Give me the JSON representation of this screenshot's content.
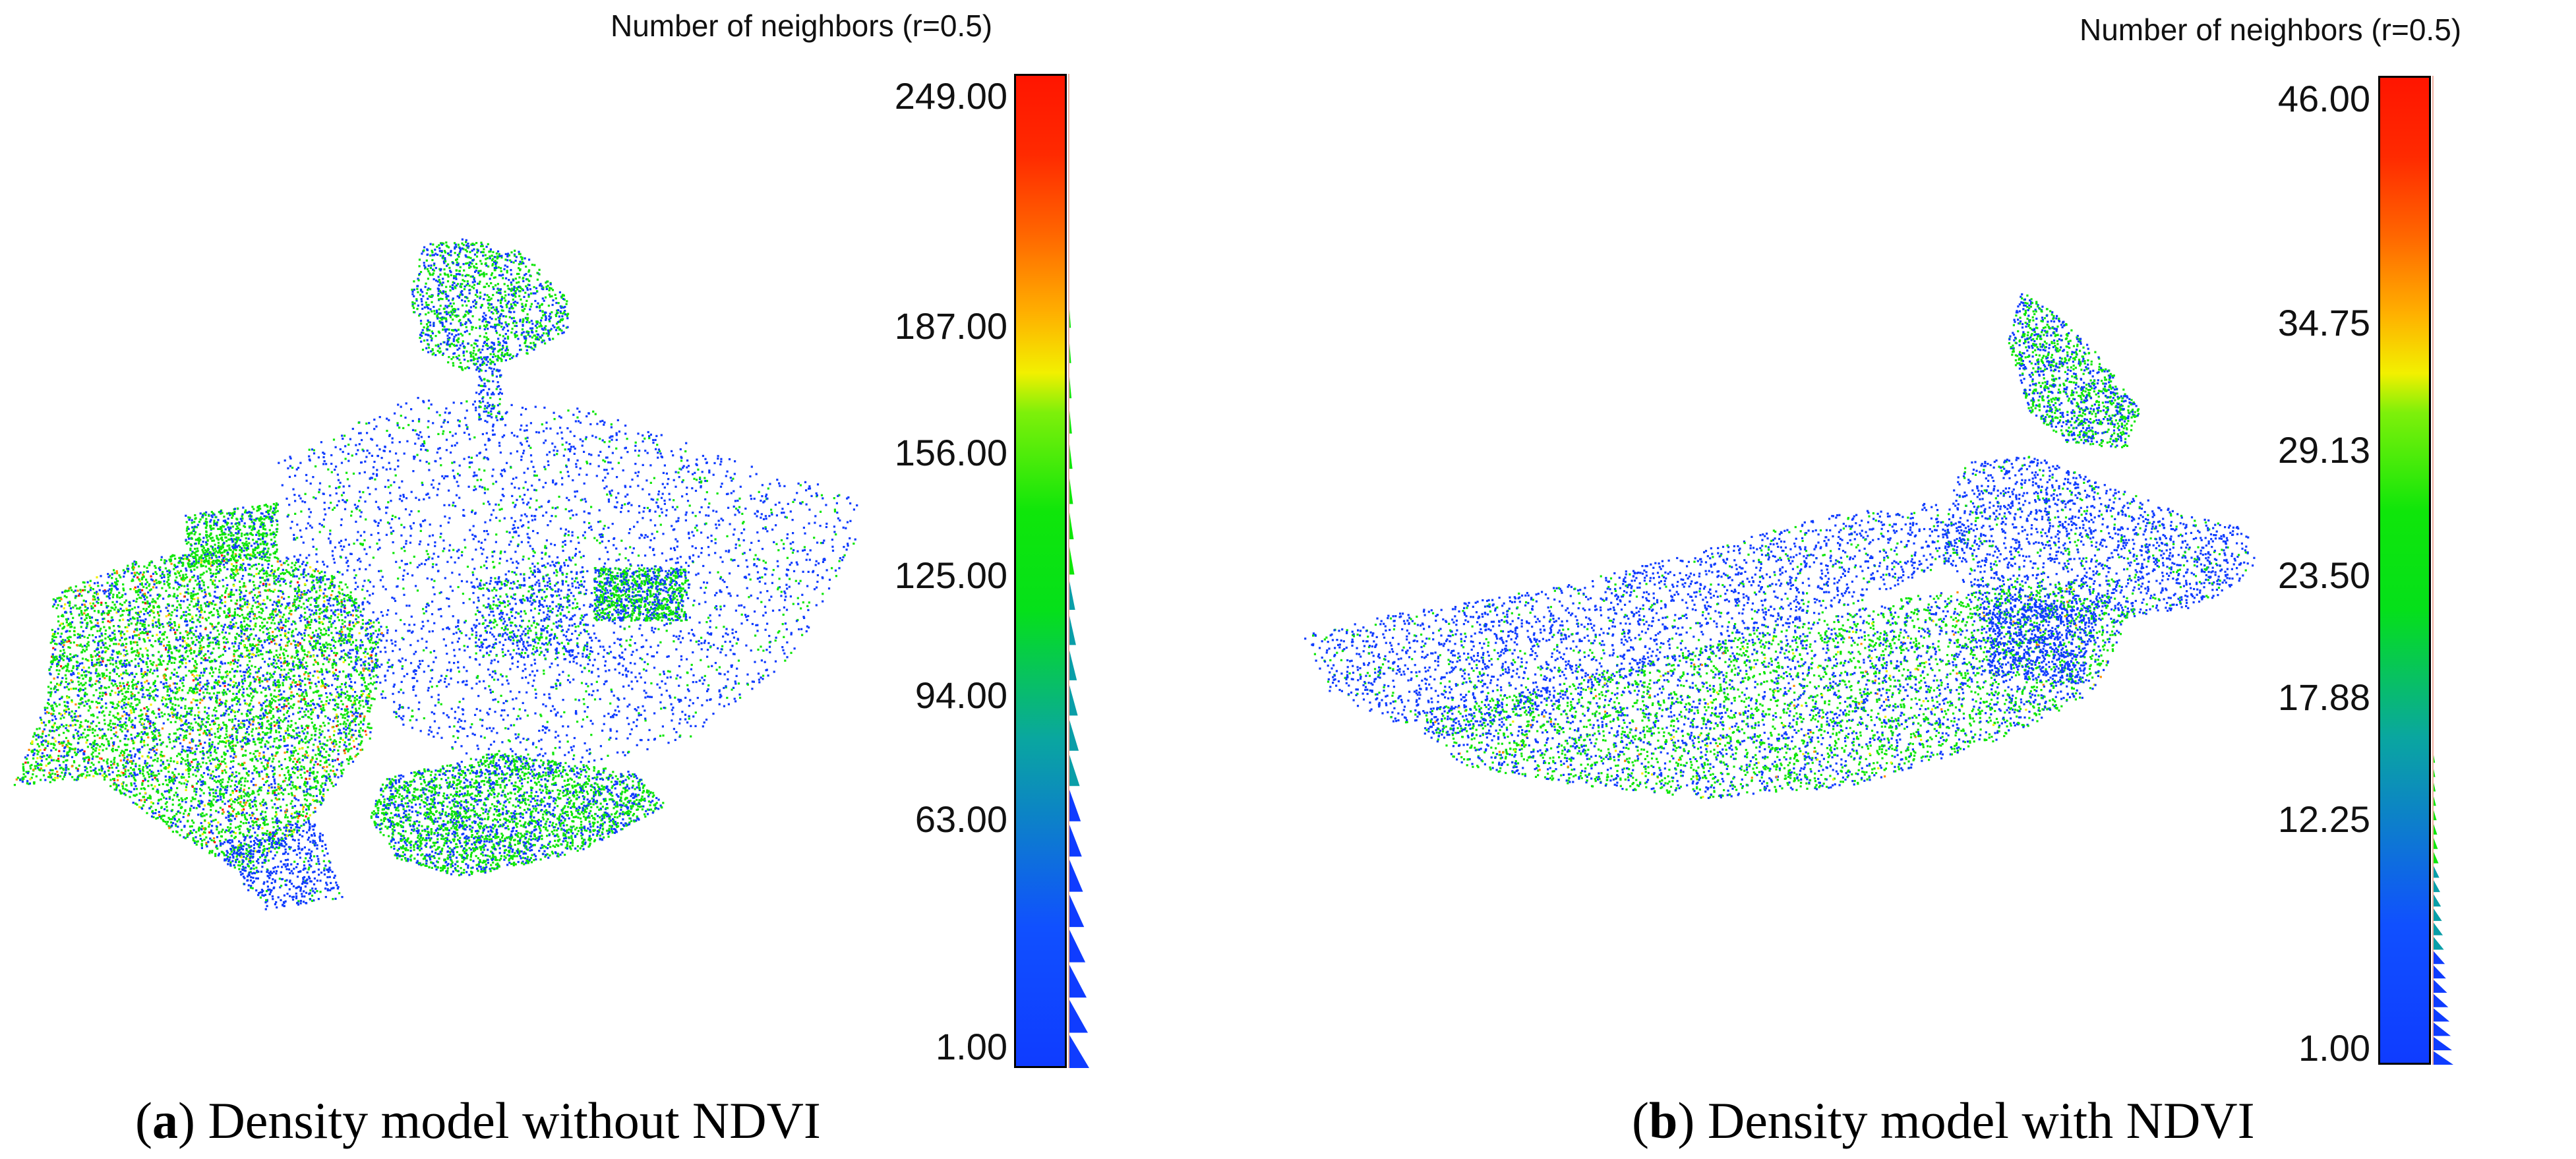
{
  "panels": [
    {
      "scale_title": "Number of neighbors (r=0.5)",
      "ticks": [
        "249.00",
        "187.00",
        "156.00",
        "125.00",
        "94.00",
        "63.00",
        "1.00"
      ],
      "caption_letter": "a",
      "caption_text": "Density model without NDVI"
    },
    {
      "scale_title": "Number of neighbors (r=0.5)",
      "ticks": [
        "46.00",
        "34.75",
        "29.13",
        "23.50",
        "17.88",
        "12.25",
        "1.00"
      ],
      "caption_letter": "b",
      "caption_text": "Density model with NDVI"
    }
  ],
  "colors": {
    "low": "#0f3cff",
    "mid": "#0fe60a",
    "high": "#ff1500",
    "yellow": "#f2f000",
    "orange": "#ff8a00"
  }
}
